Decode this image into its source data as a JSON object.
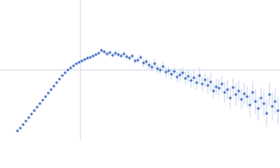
{
  "chart_data": {
    "type": "scatter",
    "xlim": [
      0,
      400
    ],
    "ylim": [
      0,
      200
    ],
    "vline": 115,
    "hline": 100,
    "line_color": "#c9d3e6",
    "series": [
      {
        "color": "#3a66c0",
        "error_color": "#a9bee8",
        "x": [
          25,
          29,
          33,
          37,
          41,
          45,
          49,
          53,
          57,
          61,
          65,
          69,
          73,
          77,
          81,
          85,
          89,
          93,
          97,
          101,
          105,
          109,
          113,
          117,
          121,
          125,
          129,
          133,
          137,
          141,
          145,
          149,
          153,
          157,
          161,
          165,
          169,
          173,
          177,
          181,
          185,
          189,
          193,
          197,
          201,
          205,
          209,
          213,
          217,
          221,
          225,
          229,
          233,
          237,
          241,
          245,
          249,
          253,
          257,
          261,
          265,
          269,
          273,
          277,
          281,
          285,
          289,
          293,
          297,
          301,
          305,
          309,
          313,
          317,
          321,
          325,
          329,
          333,
          337,
          341,
          345,
          349,
          353,
          357,
          361,
          365,
          369,
          373,
          377,
          381,
          385,
          389,
          393,
          397
        ],
        "values": [
          13,
          17,
          22,
          27,
          32,
          37,
          42,
          47,
          52,
          57,
          62,
          67,
          72,
          77,
          82,
          87,
          92,
          96,
          100,
          103,
          106,
          109,
          111,
          113,
          115,
          117,
          118,
          120,
          122,
          124,
          128,
          126,
          123,
          125,
          121,
          124,
          122,
          120,
          123,
          119,
          117,
          120,
          113,
          114,
          118,
          110,
          112,
          107,
          104,
          109,
          102,
          100,
          105,
          97,
          99,
          94,
          98,
          90,
          93,
          96,
          88,
          91,
          85,
          89,
          82,
          92,
          80,
          86,
          78,
          83,
          70,
          76,
          74,
          80,
          68,
          72,
          60,
          75,
          65,
          70,
          58,
          66,
          62,
          50,
          68,
          55,
          45,
          60,
          52,
          38,
          65,
          48,
          55,
          42
        ],
        "errors": [
          1,
          1,
          1,
          1,
          1,
          1,
          1,
          1,
          1,
          1,
          1,
          1,
          1,
          1,
          1,
          1,
          1,
          1,
          1,
          1,
          1,
          1,
          2,
          2,
          2,
          2,
          2,
          2,
          2,
          2,
          3,
          3,
          3,
          3,
          3,
          4,
          3,
          3,
          4,
          4,
          3,
          4,
          5,
          4,
          4,
          6,
          5,
          6,
          6,
          7,
          6,
          6,
          7,
          7,
          6,
          8,
          7,
          8,
          9,
          8,
          10,
          9,
          10,
          11,
          10,
          12,
          11,
          10,
          12,
          13,
          11,
          12,
          13,
          12,
          14,
          13,
          15,
          14,
          16,
          15,
          14,
          16,
          15,
          17,
          16,
          18,
          17,
          15,
          18,
          19,
          17,
          20,
          18,
          20
        ]
      }
    ]
  }
}
